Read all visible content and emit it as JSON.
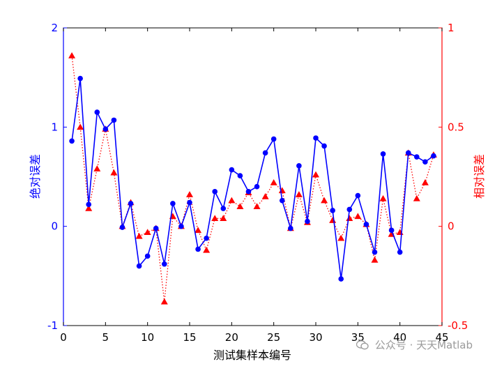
{
  "chart_data": {
    "type": "line",
    "xlabel": "测试集样本编号",
    "ylabel_left": "绝对误差",
    "ylabel_right": "相对误差",
    "xlim": [
      0,
      45
    ],
    "ylim_left": [
      -1,
      2
    ],
    "ylim_right": [
      -0.5,
      1
    ],
    "xticks": [
      0,
      5,
      10,
      15,
      20,
      25,
      30,
      35,
      40,
      45
    ],
    "yticks_left": [
      -1,
      0,
      1,
      2
    ],
    "yticks_right": [
      -0.5,
      0,
      0.5,
      1
    ],
    "yticks_right_labels": [
      "-0.5",
      "0",
      "0.5",
      "1"
    ],
    "colors": {
      "left_axis": "#0000ff",
      "right_axis": "#ff0000"
    },
    "series": [
      {
        "axis": "left",
        "style": "solid line, circle markers",
        "color": "#0000ff",
        "x": [
          1,
          2,
          3,
          4,
          5,
          6,
          7,
          8,
          9,
          10,
          11,
          12,
          13,
          14,
          15,
          16,
          17,
          18,
          19,
          20,
          21,
          22,
          23,
          24,
          25,
          26,
          27,
          28,
          29,
          30,
          31,
          32,
          33,
          34,
          35,
          36,
          37,
          38,
          39,
          40,
          41,
          42,
          43,
          44
        ],
        "values": [
          0.86,
          1.49,
          0.22,
          1.15,
          0.98,
          1.07,
          -0.01,
          0.23,
          -0.4,
          -0.3,
          -0.02,
          -0.38,
          0.23,
          0.0,
          0.24,
          -0.23,
          -0.12,
          0.35,
          0.18,
          0.57,
          0.51,
          0.35,
          0.4,
          0.74,
          0.88,
          0.26,
          -0.02,
          0.61,
          0.05,
          0.89,
          0.81,
          0.16,
          -0.53,
          0.17,
          0.31,
          0.02,
          -0.26,
          0.73,
          -0.04,
          -0.26,
          0.74,
          0.7,
          0.65,
          0.71
        ]
      },
      {
        "axis": "right",
        "style": "dotted line, triangle markers",
        "color": "#ff0000",
        "x": [
          1,
          2,
          3,
          4,
          5,
          6,
          7,
          8,
          9,
          10,
          11,
          12,
          13,
          14,
          15,
          16,
          17,
          18,
          19,
          20,
          21,
          22,
          23,
          24,
          25,
          26,
          27,
          28,
          29,
          30,
          31,
          32,
          33,
          34,
          35,
          36,
          37,
          38,
          39,
          40,
          41,
          42,
          43,
          44
        ],
        "values": [
          0.86,
          0.5,
          0.09,
          0.29,
          0.49,
          0.27,
          0.0,
          0.12,
          -0.05,
          -0.03,
          -0.01,
          -0.38,
          0.05,
          0.0,
          0.16,
          -0.02,
          -0.12,
          0.04,
          0.04,
          0.13,
          0.1,
          0.17,
          0.1,
          0.15,
          0.22,
          0.18,
          -0.01,
          0.16,
          0.02,
          0.26,
          0.13,
          0.03,
          -0.06,
          0.04,
          0.05,
          0.01,
          -0.17,
          0.14,
          -0.04,
          -0.03,
          0.37,
          0.14,
          0.22,
          0.36
        ]
      }
    ]
  },
  "watermark": {
    "text": "公众号 · 天天Matlab"
  }
}
